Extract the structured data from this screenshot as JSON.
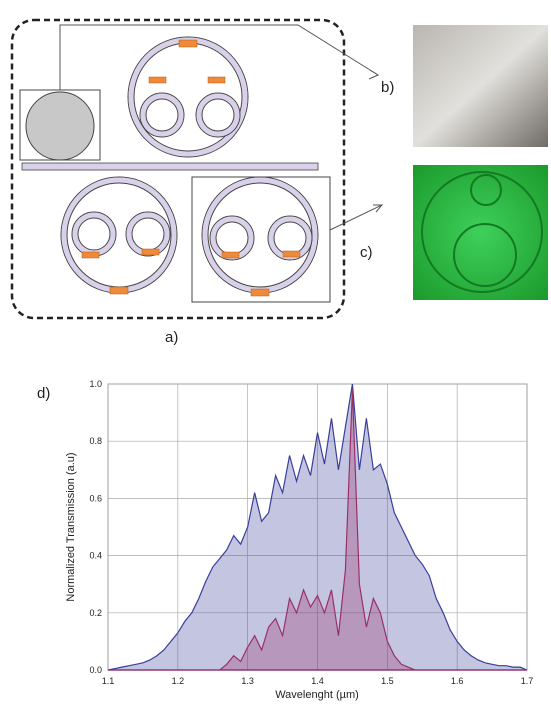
{
  "labels": [
    "a)",
    "b)",
    "c)",
    "d)"
  ],
  "chart_data": {
    "type": "area",
    "xlabel": "Wavelenght (µm)",
    "ylabel": "Normalized Transmission (a.u)",
    "xlim": [
      1.1,
      1.7
    ],
    "xticks": [
      1.1,
      1.2,
      1.3,
      1.4,
      1.5,
      1.6,
      1.7
    ],
    "ylim": [
      0,
      1
    ],
    "yticks": [
      {
        "value": 0,
        "label": "0.0"
      },
      0.2,
      0.4,
      0.6,
      0.8,
      {
        "value": 1,
        "label": "1.0"
      }
    ],
    "grid": true,
    "x": [
      1.1,
      1.11,
      1.12,
      1.13,
      1.14,
      1.15,
      1.16,
      1.17,
      1.18,
      1.19,
      1.2,
      1.21,
      1.22,
      1.23,
      1.24,
      1.25,
      1.26,
      1.27,
      1.28,
      1.29,
      1.3,
      1.31,
      1.32,
      1.33,
      1.34,
      1.35,
      1.36,
      1.37,
      1.38,
      1.39,
      1.4,
      1.41,
      1.42,
      1.43,
      1.44,
      1.45,
      1.46,
      1.47,
      1.48,
      1.49,
      1.5,
      1.51,
      1.52,
      1.53,
      1.54,
      1.55,
      1.56,
      1.57,
      1.58,
      1.59,
      1.6,
      1.61,
      1.62,
      1.63,
      1.64,
      1.65,
      1.66,
      1.67,
      1.68,
      1.69,
      1.7
    ],
    "series": [
      {
        "color": "#3a3f9a",
        "values": [
          0,
          0.005,
          0.01,
          0.015,
          0.02,
          0.025,
          0.035,
          0.05,
          0.07,
          0.1,
          0.13,
          0.17,
          0.2,
          0.25,
          0.31,
          0.36,
          0.39,
          0.42,
          0.47,
          0.44,
          0.5,
          0.62,
          0.52,
          0.55,
          0.68,
          0.62,
          0.75,
          0.66,
          0.75,
          0.68,
          0.83,
          0.72,
          0.88,
          0.7,
          0.85,
          1.0,
          0.7,
          0.88,
          0.7,
          0.72,
          0.65,
          0.55,
          0.5,
          0.45,
          0.4,
          0.37,
          0.33,
          0.25,
          0.2,
          0.14,
          0.1,
          0.07,
          0.05,
          0.035,
          0.025,
          0.02,
          0.015,
          0.015,
          0.01,
          0.01,
          0
        ]
      },
      {
        "color": "#9a2f6a",
        "values": [
          0,
          0,
          0,
          0,
          0,
          0,
          0,
          0,
          0,
          0,
          0,
          0,
          0,
          0,
          0,
          0,
          0,
          0.02,
          0.05,
          0.03,
          0.08,
          0.12,
          0.07,
          0.15,
          0.18,
          0.12,
          0.25,
          0.2,
          0.28,
          0.22,
          0.26,
          0.2,
          0.28,
          0.12,
          0.35,
          0.98,
          0.3,
          0.15,
          0.25,
          0.2,
          0.1,
          0.05,
          0.02,
          0.01,
          0,
          0,
          0,
          0,
          0,
          0,
          0,
          0,
          0,
          0,
          0,
          0,
          0,
          0,
          0,
          0,
          0
        ]
      }
    ]
  }
}
